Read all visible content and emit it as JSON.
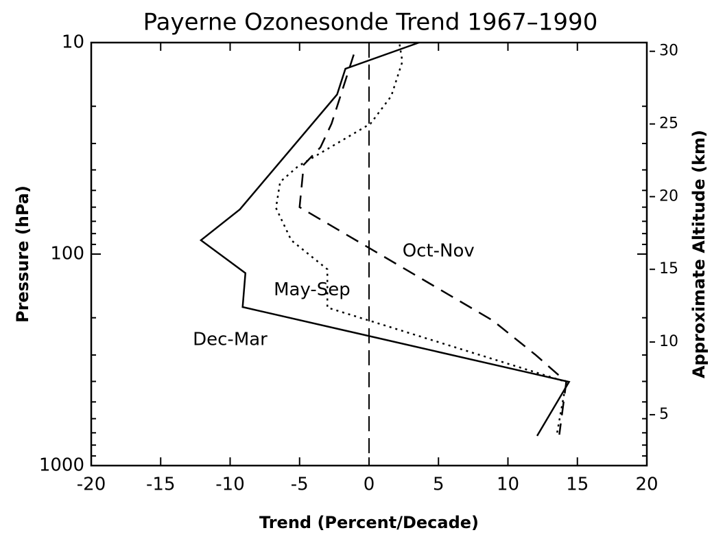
{
  "chart_data": {
    "type": "line",
    "title": "Payerne Ozonesonde Trend 1967–1990",
    "xlabel": "Trend (Percent/Decade)",
    "ylabel": "Pressure (hPa)",
    "y2label": "Approximate Altitude (km)",
    "xlim": [
      -20,
      20
    ],
    "xticks": [
      -20,
      -15,
      -10,
      -5,
      0,
      5,
      10,
      15,
      20
    ],
    "ylim": [
      1000,
      10
    ],
    "yticks": [
      10,
      100,
      1000
    ],
    "ylog": true,
    "yminorticks": [
      20,
      30,
      40,
      50,
      60,
      70,
      80,
      90,
      200,
      300,
      400,
      500,
      600,
      700,
      800,
      900
    ],
    "y2lim": [
      1.5,
      30.6
    ],
    "y2ticks": [
      5,
      10,
      15,
      20,
      25,
      30
    ],
    "vline": 0,
    "series": [
      {
        "name": "Dec-Mar",
        "color": "#000",
        "style": "solid",
        "x": [
          3.6,
          -1.7,
          -2.3,
          -9.3,
          -12.1,
          -8.9,
          -9.1,
          14.4,
          12.1
        ],
        "values": [
          10,
          13.3,
          17.6,
          61.5,
          86,
          123,
          178,
          402,
          724
        ]
      },
      {
        "name": "Oct-Nov",
        "color": "#000",
        "style": "dashed",
        "x": [
          -1.1,
          -2.7,
          -3.5,
          -4.7,
          -5,
          8.9,
          12,
          14.2,
          13.7
        ],
        "values": [
          11.4,
          24.2,
          31.3,
          37.8,
          60,
          206,
          300,
          402,
          714
        ]
      },
      {
        "name": "May-Sep",
        "color": "#000",
        "style": "dotted",
        "x": [
          2.2,
          2.4,
          1.6,
          0.1,
          -5.1,
          -6.4,
          -6.7,
          -5.6,
          -3,
          -3,
          14.2,
          13.5
        ],
        "values": [
          10.2,
          12.3,
          17.9,
          24.2,
          38.4,
          45.6,
          60.5,
          86,
          118,
          179,
          402,
          724
        ]
      }
    ],
    "annotations": [
      {
        "text": "Oct-Nov",
        "x": 5,
        "y": 97
      },
      {
        "text": "May-Sep",
        "x": -4.1,
        "y": 148
      },
      {
        "text": "Dec-Mar",
        "x": -10,
        "y": 255
      }
    ]
  }
}
